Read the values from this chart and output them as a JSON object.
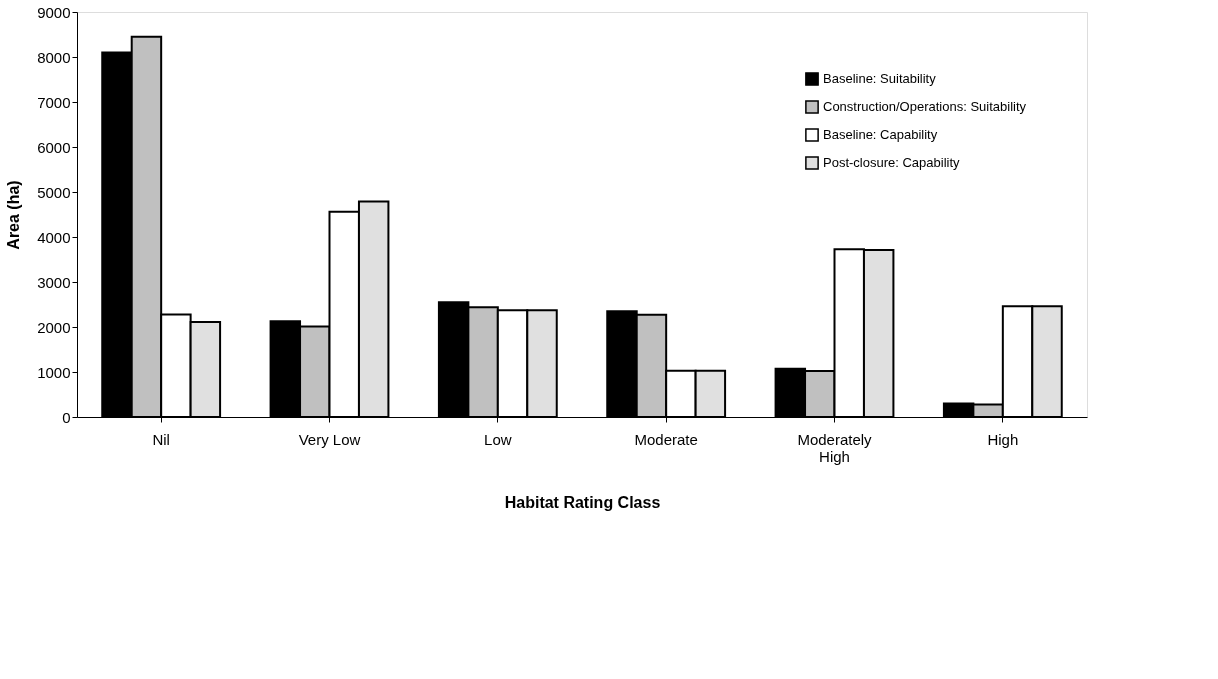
{
  "chart_data": {
    "type": "bar",
    "xlabel": "Habitat Rating Class",
    "ylabel": "Area (ha)",
    "categories": [
      "Nil",
      "Very Low",
      "Low",
      "Moderate",
      "Moderately High",
      "High"
    ],
    "series": [
      {
        "name": "Baseline: Suitability",
        "color": "#000000",
        "values": [
          8100,
          2130,
          2550,
          2350,
          1070,
          300
        ]
      },
      {
        "name": "Construction/Operations: Suitability",
        "color": "#c0c0c0",
        "values": [
          8450,
          2010,
          2440,
          2270,
          1020,
          280
        ]
      },
      {
        "name": "Baseline: Capability",
        "color": "#ffffff",
        "values": [
          2280,
          4560,
          2370,
          1030,
          3730,
          2460
        ]
      },
      {
        "name": "Post-closure: Capability",
        "color": "#e0e0e0",
        "values": [
          2110,
          4790,
          2370,
          1030,
          3710,
          2460
        ]
      }
    ],
    "ylim": [
      0,
      9000
    ],
    "yticks": [
      0,
      1000,
      2000,
      3000,
      4000,
      5000,
      6000,
      7000,
      8000,
      9000
    ],
    "grid": false,
    "legend": "top right"
  }
}
